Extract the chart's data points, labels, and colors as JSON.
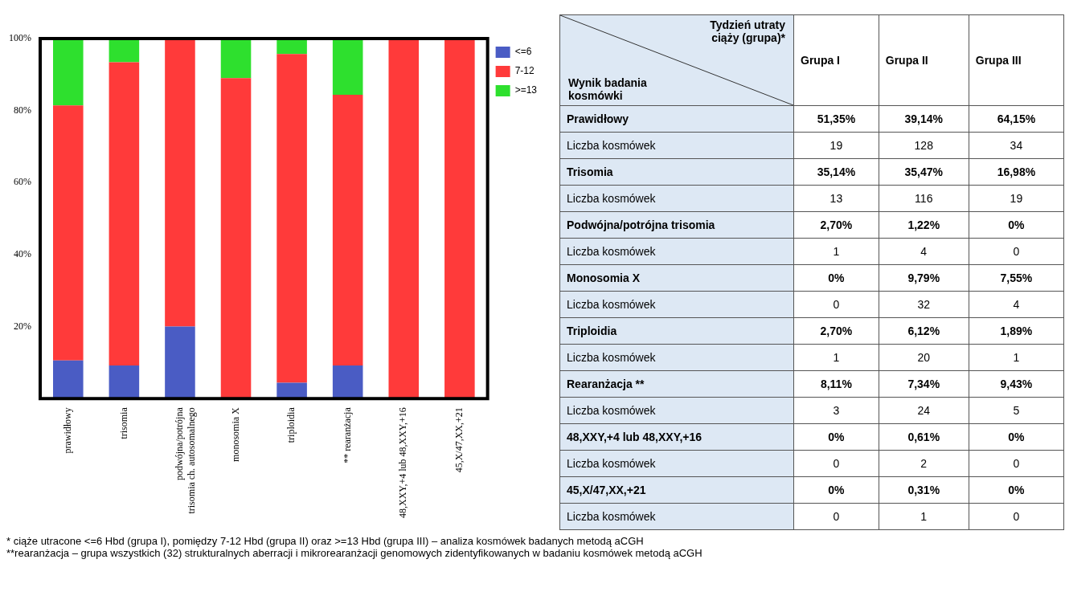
{
  "chart_data": [
    {
      "type": "bar",
      "stacked": true,
      "categories": [
        "prawidłowy",
        "trisomia",
        "podwójna/potrójna\ntrisomia ch. autosomalnego",
        "monosomia X",
        "triploidia",
        "** rearanżacja",
        "48,XXY,+4 lub 48,XXY,+16",
        "45,X/47,XX,+21"
      ],
      "series": [
        {
          "name": "<=6",
          "color": "#4a5cc4",
          "values": [
            10.6,
            9.2,
            20,
            0,
            4.4,
            9.2,
            0,
            0
          ]
        },
        {
          "name": "7-12",
          "color": "#ff3a3a",
          "values": [
            70.8,
            84.2,
            80,
            89,
            91.3,
            75.2,
            100,
            100
          ]
        },
        {
          "name": ">=13",
          "color": "#2ee02e",
          "values": [
            18.6,
            6.6,
            0,
            11,
            4.3,
            15.6,
            0,
            0
          ]
        }
      ],
      "ylim": [
        0,
        100
      ],
      "yticks": [
        {
          "value": 20,
          "label": "20%"
        },
        {
          "value": 40,
          "label": "40%"
        },
        {
          "value": 60,
          "label": "60%"
        },
        {
          "value": 80,
          "label": "80%"
        },
        {
          "value": 100,
          "label": "100%"
        }
      ],
      "legend": "right"
    },
    {
      "type": "other",
      "xlabel": "Tydzień utraty\nciąży (grupa)*",
      "ylabel": "Wynik badania\nkosmówki",
      "categories": [
        "Grupa I",
        "Grupa II",
        "Grupa III"
      ],
      "y_categories": [
        "Prawidłowy",
        "Liczba kosmówek",
        "Trisomia",
        "Liczba kosmówek",
        "Podwójna/potrójna trisomia",
        "Liczba kosmówek",
        "Monosomia X",
        "Liczba kosmówek",
        "Triploidia",
        "Liczba kosmówek",
        "Rearanżacja **",
        "Liczba kosmówek",
        "48,XXY,+4 lub 48,XXY,+16",
        "Liczba kosmówek",
        "45,X/47,XX,+21",
        "Liczba kosmówek"
      ],
      "cell_labels": [
        [
          "51,35%",
          "39,14%",
          "64,15%"
        ],
        [
          "19",
          "128",
          "34"
        ],
        [
          "35,14%",
          "35,47%",
          "16,98%"
        ],
        [
          "13",
          "116",
          "19"
        ],
        [
          "2,70%",
          "1,22%",
          "0%"
        ],
        [
          "1",
          "4",
          "0"
        ],
        [
          "0%",
          "9,79%",
          "7,55%"
        ],
        [
          "0",
          "32",
          "4"
        ],
        [
          "2,70%",
          "6,12%",
          "1,89%"
        ],
        [
          "1",
          "20",
          "1"
        ],
        [
          "8,11%",
          "7,34%",
          "9,43%"
        ],
        [
          "3",
          "24",
          "5"
        ],
        [
          "0%",
          "0,61%",
          "0%"
        ],
        [
          "0",
          "2",
          "0"
        ],
        [
          "0%",
          "0,31%",
          "0%"
        ],
        [
          "0",
          "1",
          "0"
        ]
      ],
      "annotations": [
        "* ciąże utracone <=6 Hbd (grupa I), pomiędzy 7-12 Hbd (grupa II) oraz >=13 Hbd (grupa III) – analiza kosmówek badanych metodą aCGH",
        "**rearanżacja – grupa wszystkich (32) strukturalnych aberracji i mikrorearanżacji genomowych zidentyfikowanych w badaniu kosmówek metodą aCGH"
      ]
    }
  ]
}
